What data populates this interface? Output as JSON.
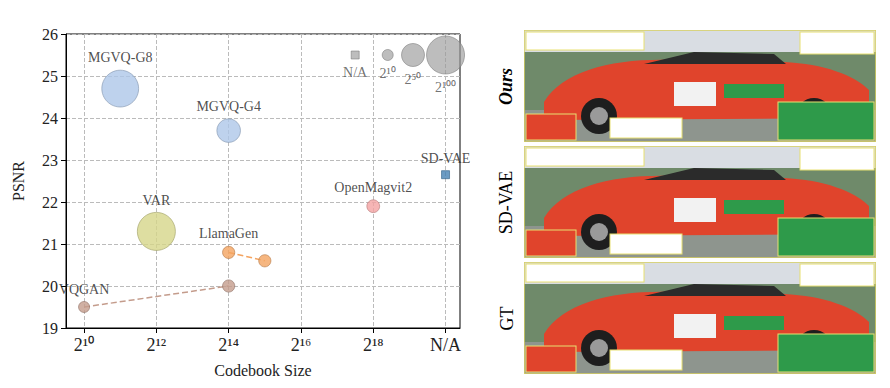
{
  "chart_data": {
    "type": "scatter",
    "x_label": "Codebook Size",
    "y_label": "PSNR",
    "xlim": [
      9.5,
      20.4
    ],
    "ylim": [
      19,
      26
    ],
    "xticks": [
      {
        "value": 10,
        "label": "2¹⁰"
      },
      {
        "value": 12,
        "label": "2¹²"
      },
      {
        "value": 14,
        "label": "2¹⁴"
      },
      {
        "value": 16,
        "label": "2¹⁶"
      },
      {
        "value": 18,
        "label": "2¹⁸"
      },
      {
        "value": 20,
        "label": "N/A"
      }
    ],
    "yticks": [
      19,
      20,
      21,
      22,
      23,
      24,
      25,
      26
    ],
    "grid": true,
    "series": [
      {
        "name": "MGVQ-G8",
        "color": "#aec7e8",
        "marker": "circle",
        "x": [
          11
        ],
        "y": [
          24.7
        ],
        "sizes": [
          96
        ]
      },
      {
        "name": "MGVQ-G4",
        "color": "#aec7e8",
        "marker": "circle",
        "x": [
          14
        ],
        "y": [
          23.7
        ],
        "sizes": [
          52
        ]
      },
      {
        "name": "VAR",
        "color": "#d6d68a",
        "marker": "circle",
        "x": [
          12
        ],
        "y": [
          21.3
        ],
        "sizes": [
          100
        ]
      },
      {
        "name": "LlamaGen",
        "type": "line",
        "line_style": "dashed",
        "color": "#f4a460",
        "marker": "circle",
        "x": [
          14,
          15
        ],
        "y": [
          20.8,
          20.6
        ],
        "sizes": [
          14,
          14
        ]
      },
      {
        "name": "VQGAN",
        "type": "line",
        "line_style": "dashed",
        "color": "#c49c8c",
        "marker": "circle",
        "x": [
          10,
          14
        ],
        "y": [
          19.5,
          20.0
        ],
        "sizes": [
          10,
          14
        ]
      },
      {
        "name": "OpenMagvit2",
        "color": "#f4a3a3",
        "marker": "circle",
        "x": [
          18
        ],
        "y": [
          21.9
        ],
        "sizes": [
          16
        ]
      },
      {
        "name": "SD-VAE",
        "color": "#4682b4",
        "marker": "square",
        "x": [
          20
        ],
        "y": [
          22.65
        ],
        "sizes": [
          null
        ]
      }
    ],
    "size_key": {
      "color": "#999999",
      "items": [
        {
          "label": "N/A",
          "marker": "square",
          "x": 17.5,
          "y": 25.5,
          "size": null
        },
        {
          "label": "2¹⁰",
          "marker": "circle",
          "x": 18.4,
          "y": 25.5,
          "size": 10
        },
        {
          "label": "2⁵⁰",
          "marker": "circle",
          "x": 19.1,
          "y": 25.5,
          "size": 50
        },
        {
          "label": "2¹⁰⁰",
          "marker": "circle",
          "x": 20,
          "y": 25.5,
          "size": 100
        }
      ]
    }
  },
  "image_panel": {
    "row_labels": [
      "Ours",
      "SD-VAE",
      "GT"
    ]
  }
}
